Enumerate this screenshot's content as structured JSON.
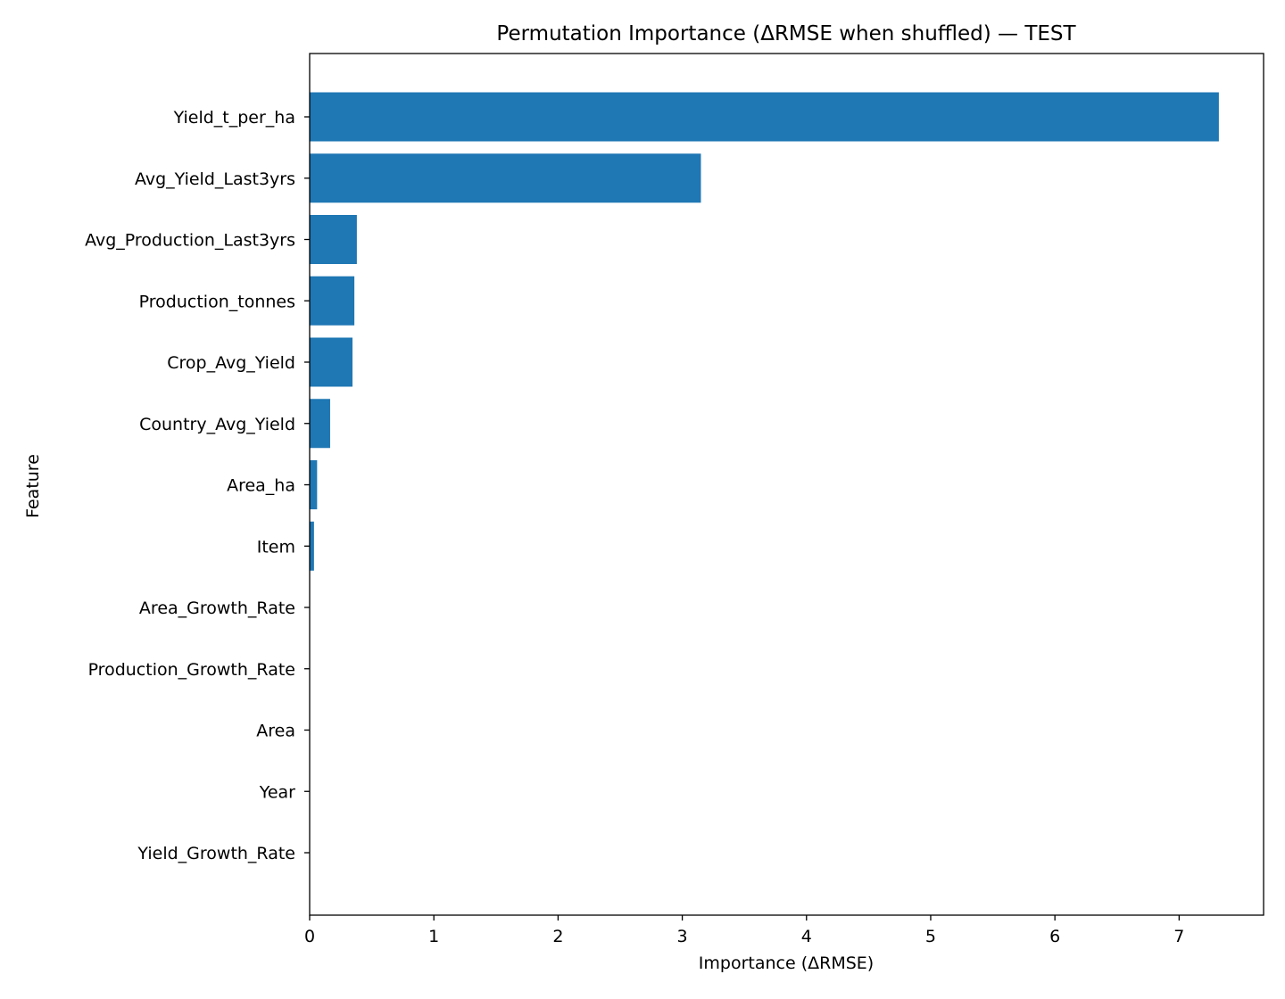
{
  "chart_data": {
    "type": "bar",
    "orientation": "horizontal",
    "title": "Permutation Importance (ΔRMSE when shuffled) — TEST",
    "xlabel": "Importance (ΔRMSE)",
    "ylabel": "Feature",
    "xlim": [
      0,
      7.68
    ],
    "xticks": [
      0,
      1,
      2,
      3,
      4,
      5,
      6,
      7
    ],
    "grid": false,
    "bar_color": "#1f77b4",
    "categories": [
      "Yield_t_per_ha",
      "Avg_Yield_Last3yrs",
      "Avg_Production_Last3yrs",
      "Production_tonnes",
      "Crop_Avg_Yield",
      "Country_Avg_Yield",
      "Area_ha",
      "Item",
      "Area_Growth_Rate",
      "Production_Growth_Rate",
      "Area",
      "Year",
      "Yield_Growth_Rate"
    ],
    "values": [
      7.32,
      3.15,
      0.38,
      0.36,
      0.345,
      0.165,
      0.06,
      0.035,
      0.0,
      0.0,
      0.0,
      0.0,
      0.0
    ]
  }
}
